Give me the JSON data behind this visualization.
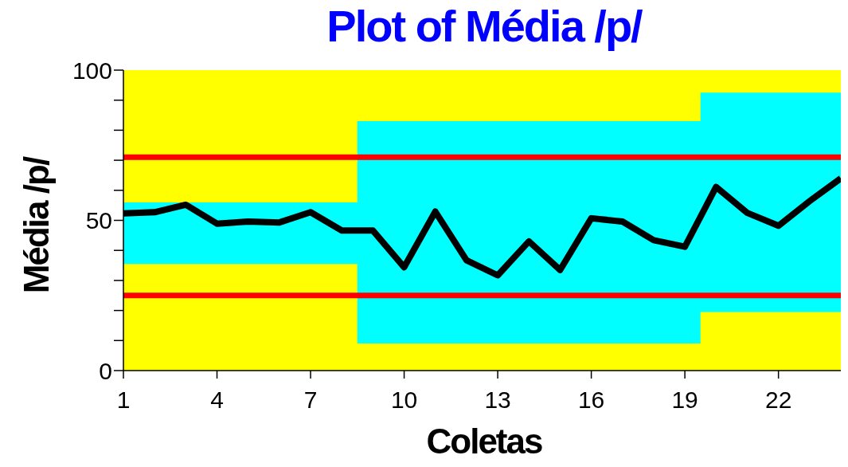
{
  "chart_data": {
    "type": "line",
    "title": "Plot of Média /p/",
    "xlabel": "Coletas",
    "ylabel": "Média /p/",
    "x": [
      1,
      2,
      3,
      4,
      5,
      6,
      7,
      8,
      9,
      10,
      11,
      12,
      13,
      14,
      15,
      16,
      17,
      18,
      19,
      20,
      21,
      22,
      23,
      24
    ],
    "series": [
      {
        "color": "#000000",
        "lower": [
          35.5,
          35.5,
          35.5,
          35.5,
          35.5,
          35.5,
          35.5,
          35.5,
          9,
          9,
          9,
          9,
          9,
          9,
          9,
          9,
          9,
          9,
          9,
          19.5,
          19.5,
          19.5,
          19.5,
          19.5
        ],
        "upper": [
          56,
          56,
          56,
          56,
          56,
          56,
          56,
          56,
          83,
          83,
          83,
          83,
          83,
          83,
          83,
          83,
          83,
          83,
          83,
          92.5,
          92.5,
          92.5,
          92.5,
          92.5
        ],
        "values": [
          52.3,
          52.7,
          55.2,
          48.9,
          49.6,
          49.3,
          52.7,
          46.6,
          46.6,
          34.4,
          52.9,
          36.7,
          31.7,
          43,
          33.5,
          50.7,
          49.6,
          43.4,
          41.2,
          61.1,
          52.5,
          48.2,
          56.4,
          64
        ]
      }
    ],
    "xlim": [
      1,
      24
    ],
    "xticks": [
      1,
      4,
      7,
      10,
      13,
      16,
      19,
      22
    ],
    "ylim": [
      0,
      100
    ],
    "yticks": [
      0,
      {
        "value": 10,
        "label": null
      },
      {
        "value": 20,
        "label": null
      },
      {
        "value": 30,
        "label": null
      },
      {
        "value": 40,
        "label": null
      },
      50,
      {
        "value": 60,
        "label": null
      },
      {
        "value": 70,
        "label": null
      },
      {
        "value": 80,
        "label": null
      },
      {
        "value": 90,
        "label": null
      },
      100
    ],
    "ref_lines": [
      {
        "axis": "y",
        "value": 71,
        "color": "#ff0000"
      },
      {
        "axis": "y",
        "value": 25,
        "color": "#ff0000"
      }
    ],
    "bands": [
      {
        "axis": "x",
        "from": 1,
        "to": 24,
        "color": "#ffff00"
      }
    ],
    "grid": false,
    "marker": "none",
    "line_style": "solid"
  }
}
